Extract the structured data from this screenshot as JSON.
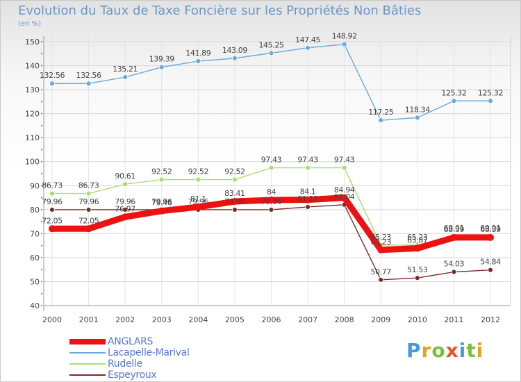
{
  "header": {
    "title": "Evolution du Taux de Taxe Foncière sur les Propriétés Non Bâties",
    "subtitle": "(en %)"
  },
  "brand": {
    "letters": [
      "P",
      "r",
      "o",
      "x",
      "i",
      "t",
      "i"
    ],
    "colors": [
      "#4a9ad8",
      "#e8a020",
      "#7cbf3a",
      "#e8542a",
      "#4a9ad8",
      "#7cbf3a",
      "#e8a020"
    ]
  },
  "chart_data": {
    "type": "line",
    "title": "Evolution du Taux de Taxe Foncière sur les Propriétés Non Bâties",
    "ylabel": "(en %)",
    "xlabel": "",
    "ylim": [
      40,
      150
    ],
    "yticks": [
      40,
      50,
      60,
      70,
      80,
      90,
      100,
      110,
      120,
      130,
      140,
      150
    ],
    "grid": true,
    "x": [
      "2000",
      "2001",
      "2002",
      "2003",
      "2004",
      "2005",
      "2006",
      "2007",
      "2008",
      "2009",
      "2010",
      "2011",
      "2012"
    ],
    "series": [
      {
        "name": "ANGLARS",
        "color": "#ee1111",
        "values": [
          72.05,
          72.05,
          76.97,
          79.46,
          81.1,
          83.41,
          84,
          84.1,
          84.94,
          63.23,
          63.87,
          68.39,
          68.39
        ],
        "labels": [
          "72.05",
          "72.05",
          "76.97",
          "79.46",
          "81.1",
          "83.41",
          "84",
          "84.1",
          "84.94",
          "63.23",
          "63.87",
          "68.39",
          "68.39"
        ]
      },
      {
        "name": "Lacapelle-Marival",
        "color": "#6aaad8",
        "values": [
          132.56,
          132.56,
          135.21,
          139.39,
          141.89,
          143.09,
          145.25,
          147.45,
          148.92,
          117.25,
          118.34,
          125.32,
          125.32
        ],
        "labels": [
          "132.56",
          "132.56",
          "135.21",
          "139.39",
          "141.89",
          "143.09",
          "145.25",
          "147.45",
          "148.92",
          "117.25",
          "118.34",
          "125.32",
          "125.32"
        ]
      },
      {
        "name": "Rudelle",
        "color": "#a8de70",
        "values": [
          86.73,
          86.73,
          90.61,
          92.52,
          92.52,
          92.52,
          97.43,
          97.43,
          97.43,
          65.23,
          65.23,
          69.01,
          69.01
        ],
        "labels": [
          "86.73",
          "86.73",
          "90.61",
          "92.52",
          "92.52",
          "92.52",
          "97.43",
          "97.43",
          "97.43",
          "65.23",
          "65.23",
          "69.01",
          "69.01"
        ]
      },
      {
        "name": "Espeyroux",
        "color": "#7a2a2a",
        "values": [
          79.96,
          79.96,
          79.96,
          79.96,
          79.96,
          79.96,
          79.96,
          81.12,
          82.04,
          50.77,
          51.53,
          54.03,
          54.84
        ],
        "labels": [
          "79.96",
          "79.96",
          "79.96",
          "79.96",
          "79.96",
          "79.96",
          "79.96",
          "81.12",
          "82.04",
          "50.77",
          "51.53",
          "54.03",
          "54.84"
        ]
      }
    ]
  }
}
